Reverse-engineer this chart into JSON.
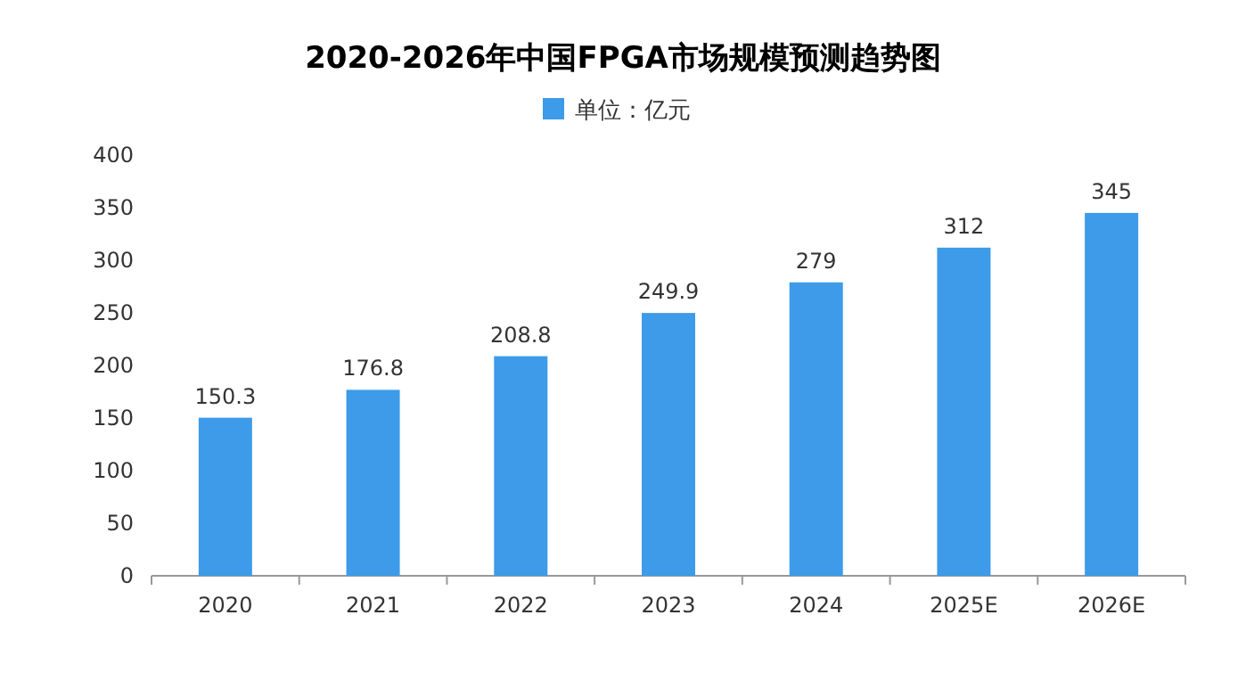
{
  "chart_data": {
    "type": "bar",
    "title": "2020-2026年中国FPGA市场规模预测趋势图",
    "categories": [
      "2020",
      "2021",
      "2022",
      "2023",
      "2024",
      "2025E",
      "2026E"
    ],
    "series": [
      {
        "name": "单位：亿元",
        "color": "#3d9be9",
        "values": [
          150.3,
          176.8,
          208.8,
          249.9,
          279,
          312,
          345
        ]
      }
    ],
    "ylim": [
      0,
      400
    ],
    "yticks": [
      0,
      50,
      100,
      150,
      200,
      250,
      300,
      350,
      400
    ],
    "grid": false,
    "legend": "top",
    "data_labels": true
  }
}
